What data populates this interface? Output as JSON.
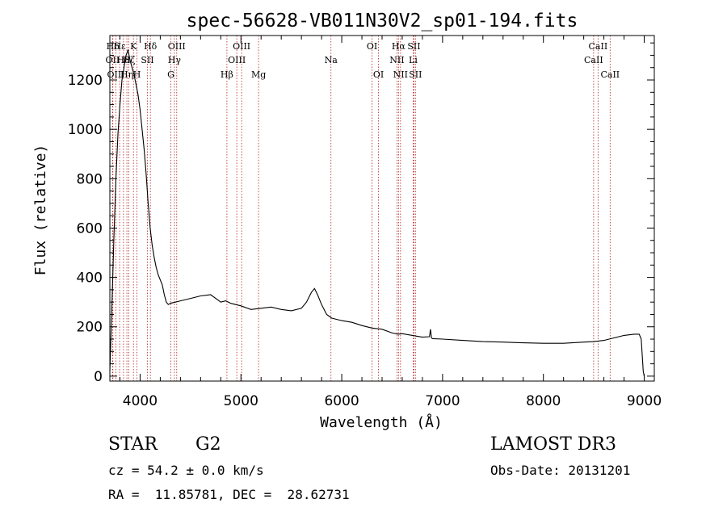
{
  "chart_data": {
    "type": "line",
    "title": "spec-56628-VB011N30V2_sp01-194.fits",
    "xlabel": "Wavelength (Å)",
    "ylabel": "Flux (relative)",
    "xlim": [
      3700,
      9100
    ],
    "ylim": [
      -20,
      1380
    ],
    "xticks": [
      4000,
      5000,
      6000,
      7000,
      8000,
      9000
    ],
    "yticks": [
      0,
      200,
      400,
      600,
      800,
      1000,
      1200
    ],
    "series": [
      {
        "name": "flux",
        "x": [
          3700,
          3720,
          3740,
          3760,
          3780,
          3800,
          3820,
          3840,
          3860,
          3880,
          3900,
          3920,
          3940,
          3960,
          3980,
          4000,
          4020,
          4040,
          4060,
          4080,
          4100,
          4120,
          4140,
          4160,
          4180,
          4200,
          4220,
          4240,
          4260,
          4280,
          4300,
          4350,
          4400,
          4500,
          4600,
          4700,
          4800,
          4850,
          4900,
          5000,
          5100,
          5200,
          5300,
          5400,
          5500,
          5600,
          5650,
          5700,
          5730,
          5760,
          5800,
          5850,
          5900,
          6000,
          6100,
          6200,
          6300,
          6400,
          6500,
          6560,
          6600,
          6700,
          6800,
          6870,
          6880,
          6890,
          6900,
          7000,
          7200,
          7400,
          7600,
          7800,
          8000,
          8200,
          8400,
          8500,
          8600,
          8700,
          8800,
          8900,
          8950,
          8970,
          8990,
          9000
        ],
        "y": [
          20,
          280,
          560,
          800,
          980,
          1100,
          1200,
          1250,
          1300,
          1320,
          1280,
          1250,
          1220,
          1180,
          1140,
          1080,
          1000,
          920,
          820,
          700,
          600,
          530,
          480,
          440,
          410,
          390,
          370,
          330,
          300,
          290,
          295,
          300,
          305,
          315,
          325,
          330,
          300,
          305,
          295,
          285,
          270,
          275,
          280,
          270,
          265,
          275,
          300,
          340,
          355,
          330,
          290,
          250,
          235,
          225,
          218,
          205,
          195,
          190,
          175,
          170,
          172,
          165,
          158,
          160,
          190,
          155,
          152,
          150,
          145,
          140,
          138,
          135,
          133,
          133,
          138,
          140,
          145,
          155,
          165,
          170,
          170,
          150,
          20,
          0
        ]
      }
    ],
    "lines": [
      {
        "label": "Hδ",
        "wavelength": 3730,
        "row": 0
      },
      {
        "label": "OII",
        "wavelength": 3727,
        "row": 1
      },
      {
        "label": "OIII",
        "wavelength": 3760,
        "row": 2
      },
      {
        "label": "Hε",
        "wavelength": 3797,
        "row": 0
      },
      {
        "label": "H8",
        "wavelength": 3835,
        "row": 1
      },
      {
        "label": "Hη",
        "wavelength": 3869,
        "row": 2
      },
      {
        "label": "K",
        "wavelength": 3934,
        "row": 0
      },
      {
        "label": "Hζ",
        "wavelength": 3889,
        "row": 1
      },
      {
        "label": "H",
        "wavelength": 3969,
        "row": 2
      },
      {
        "label": "SII",
        "wavelength": 4072,
        "row": 1
      },
      {
        "label": "Hδ",
        "wavelength": 4102,
        "row": 0
      },
      {
        "label": "OIII",
        "wavelength": 4363,
        "row": 0
      },
      {
        "label": "Hγ",
        "wavelength": 4340,
        "row": 1
      },
      {
        "label": "G",
        "wavelength": 4305,
        "row": 2
      },
      {
        "label": "Hβ",
        "wavelength": 4861,
        "row": 2
      },
      {
        "label": "OIII",
        "wavelength": 5007,
        "row": 0
      },
      {
        "label": "OIII",
        "wavelength": 4959,
        "row": 1
      },
      {
        "label": "Mg",
        "wavelength": 5175,
        "row": 2
      },
      {
        "label": "Na",
        "wavelength": 5893,
        "row": 1
      },
      {
        "label": "OI",
        "wavelength": 6300,
        "row": 0
      },
      {
        "label": "OI",
        "wavelength": 6364,
        "row": 2
      },
      {
        "label": "Hα",
        "wavelength": 6563,
        "row": 0
      },
      {
        "label": "NII",
        "wavelength": 6548,
        "row": 1
      },
      {
        "label": "NII",
        "wavelength": 6583,
        "row": 2
      },
      {
        "label": "SII",
        "wavelength": 6716,
        "row": 0
      },
      {
        "label": "Li",
        "wavelength": 6708,
        "row": 1
      },
      {
        "label": "SII",
        "wavelength": 6731,
        "row": 2
      },
      {
        "label": "CaII",
        "wavelength": 8542,
        "row": 0
      },
      {
        "label": "CaII",
        "wavelength": 8498,
        "row": 1
      },
      {
        "label": "CaII",
        "wavelength": 8662,
        "row": 2
      }
    ]
  },
  "info": {
    "object_class": "STAR",
    "subclass": "G2",
    "survey": "LAMOST DR3",
    "cz": "cz = 54.2 ± 0.0 km/s",
    "obs_date": "Obs-Date: 20131201",
    "coords": "RA =  11.85781, DEC =  28.62731"
  }
}
